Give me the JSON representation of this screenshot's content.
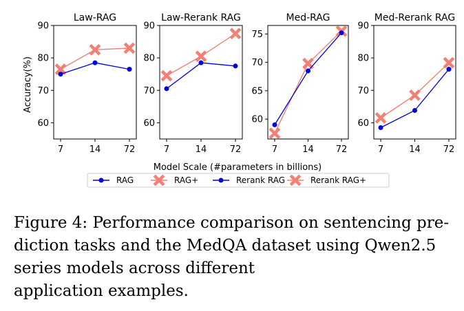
{
  "chart_data": [
    {
      "type": "line",
      "title": "Law-RAG",
      "categories": [
        "7",
        "14",
        "72"
      ],
      "ylim": [
        55,
        90
      ],
      "yticks": [
        60,
        70,
        80,
        90
      ],
      "ylabel": "Accuracy(%)",
      "series": [
        {
          "name": "RAG",
          "values": [
            75.0,
            78.5,
            76.5
          ]
        },
        {
          "name": "RAG+",
          "values": [
            76.5,
            82.5,
            83.0
          ]
        }
      ]
    },
    {
      "type": "line",
      "title": "Law-Rerank RAG",
      "categories": [
        "7",
        "14",
        "72"
      ],
      "ylim": [
        55,
        90
      ],
      "yticks": [
        60,
        70,
        80,
        90
      ],
      "series": [
        {
          "name": "Rerank RAG",
          "values": [
            70.5,
            78.5,
            77.5
          ]
        },
        {
          "name": "Rerank RAG+",
          "values": [
            74.5,
            80.5,
            87.5
          ]
        }
      ]
    },
    {
      "type": "line",
      "title": "Med-RAG",
      "categories": [
        "7",
        "14",
        "72"
      ],
      "ylim": [
        56.5,
        76.5
      ],
      "yticks": [
        60,
        65,
        70,
        75
      ],
      "series": [
        {
          "name": "RAG",
          "values": [
            59.0,
            68.5,
            75.2
          ]
        },
        {
          "name": "RAG+",
          "values": [
            57.5,
            69.8,
            75.5
          ]
        }
      ]
    },
    {
      "type": "line",
      "title": "Med-Rerank RAG",
      "categories": [
        "7",
        "14",
        "72"
      ],
      "ylim": [
        55,
        90
      ],
      "yticks": [
        60,
        70,
        80,
        90
      ],
      "series": [
        {
          "name": "Rerank RAG",
          "values": [
            58.5,
            63.8,
            76.5
          ]
        },
        {
          "name": "Rerank RAG+",
          "values": [
            61.5,
            68.5,
            78.5
          ]
        }
      ]
    }
  ],
  "xlabel": "Model Scale (#parameters in billions)",
  "legend": [
    "RAG",
    "RAG+",
    "Rerank RAG",
    "Rerank RAG+"
  ],
  "colors": {
    "base": "#0000dd",
    "plus": "#f28074"
  },
  "caption": [
    "Figure 4: Performance comparison on sentencing pre-",
    "diction tasks and the MedQA dataset using Qwen2.5",
    "series models across different",
    "application examples."
  ]
}
